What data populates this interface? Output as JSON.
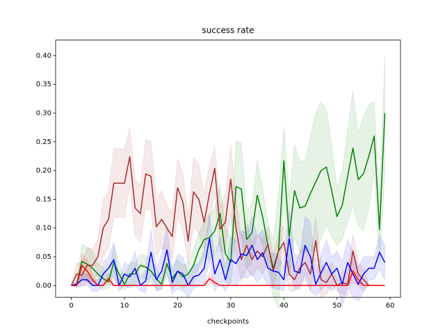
{
  "chart_data": {
    "type": "line",
    "title": "success rate",
    "xlabel": "checkpoints",
    "x": [
      0,
      1,
      2,
      3,
      4,
      5,
      6,
      7,
      8,
      9,
      10,
      11,
      12,
      13,
      14,
      15,
      16,
      17,
      18,
      19,
      20,
      21,
      22,
      23,
      24,
      25,
      26,
      27,
      28,
      29,
      30,
      31,
      32,
      33,
      34,
      35,
      36,
      37,
      38,
      39,
      40,
      41,
      42,
      43,
      44,
      45,
      46,
      47,
      48,
      49,
      50,
      51,
      52,
      53,
      54,
      55,
      56,
      57,
      58,
      59
    ],
    "xlim": [
      -2.95,
      61.95
    ],
    "xticks": [
      0,
      10,
      20,
      30,
      40,
      50,
      60
    ],
    "ylim": [
      -0.0205,
      0.427
    ],
    "yticks": [
      {
        "value": 0,
        "label": "0.00"
      },
      {
        "value": 0.05,
        "label": "0.05"
      },
      {
        "value": 0.1,
        "label": "0.10"
      },
      {
        "value": 0.15,
        "label": "0.15"
      },
      {
        "value": 0.2,
        "label": "0.20"
      },
      {
        "value": 0.25,
        "label": "0.25"
      },
      {
        "value": 0.3,
        "label": "0.30"
      },
      {
        "value": 0.35,
        "label": "0.35"
      },
      {
        "value": 0.4,
        "label": "0.40"
      }
    ],
    "band_opacity": 0.1,
    "series": [
      {
        "color": "#008000",
        "values": [
          0,
          0.002,
          0.042,
          0.037,
          0.03,
          0.02,
          0.012,
          0.006,
          0.04,
          0.02,
          0.002,
          0.02,
          0.02,
          0.035,
          0.032,
          0.025,
          0.012,
          0.002,
          0.038,
          0.012,
          0.025,
          0.015,
          0.02,
          0.035,
          0.062,
          0.08,
          0.083,
          0.095,
          0.125,
          0.055,
          0.04,
          0.172,
          0.168,
          0.08,
          0.092,
          0.157,
          0.12,
          0.07,
          0.03,
          0.06,
          0.217,
          0.085,
          0.165,
          0.135,
          0.138,
          0.16,
          0.18,
          0.2,
          0.206,
          0.165,
          0.12,
          0.14,
          0.19,
          0.239,
          0.184,
          0.195,
          0.225,
          0.26,
          0.097,
          0.3
        ],
        "err": [
          0,
          0.005,
          0.03,
          0.03,
          0.03,
          0.02,
          0.02,
          0.01,
          0.03,
          0.02,
          0.01,
          0.02,
          0.02,
          0.02,
          0.02,
          0.02,
          0.02,
          0.01,
          0.02,
          0.02,
          0.02,
          0.02,
          0.02,
          0.03,
          0.03,
          0.03,
          0.04,
          0.04,
          0.05,
          0.05,
          0.04,
          0.08,
          0.08,
          0.05,
          0.05,
          0.06,
          0.05,
          0.04,
          0.05,
          0.1,
          0.06,
          0.07,
          0.08,
          0.08,
          0.08,
          0.1,
          0.12,
          0.12,
          0.1,
          0.08,
          0.05,
          0.06,
          0.08,
          0.1,
          0.08,
          0.1,
          0.09,
          0.06,
          0.06,
          0.1
        ]
      },
      {
        "color": "#a52a2a",
        "values": [
          0,
          0.02,
          0.018,
          0.035,
          0.035,
          0.05,
          0.1,
          0.115,
          0.178,
          0.178,
          0.178,
          0.224,
          0.135,
          0.125,
          0.194,
          0.19,
          0.102,
          0.115,
          0.1,
          0.085,
          0.17,
          0.145,
          0.077,
          0.163,
          0.15,
          0.11,
          0.16,
          0.204,
          0.098,
          0.11,
          0.185,
          0.1,
          0.045,
          0.07,
          0.045,
          0.06,
          0.05,
          0.072,
          0.025,
          0.06,
          0.075,
          0.02,
          0.01,
          0.03,
          0.04,
          0.02,
          0.078,
          0.01,
          0.005,
          0.02,
          0,
          0.005,
          0.002,
          0.06,
          0.02,
          0.01,
          0,
          0,
          0,
          0
        ],
        "err": [
          0,
          0.02,
          0.02,
          0.03,
          0.03,
          0.03,
          0.05,
          0.05,
          0.06,
          0.06,
          0.06,
          0.05,
          0.05,
          0.05,
          0.06,
          0.06,
          0.05,
          0.05,
          0.04,
          0.04,
          0.05,
          0.05,
          0.04,
          0.06,
          0.06,
          0.05,
          0.05,
          0.04,
          0.04,
          0.05,
          0.06,
          0.05,
          0.04,
          0.04,
          0.03,
          0.03,
          0.03,
          0.03,
          0.03,
          0.03,
          0.03,
          0.03,
          0.02,
          0.03,
          0.03,
          0.03,
          0.04,
          0.03,
          0.02,
          0.02,
          0.01,
          0.02,
          0.02,
          0.03,
          0.02,
          0.02,
          0,
          0,
          0,
          0
        ]
      },
      {
        "color": "#0000ff",
        "values": [
          0,
          0.002,
          0.01,
          0.01,
          0,
          0,
          0.02,
          0.03,
          0.045,
          0,
          0.02,
          0.015,
          0.03,
          0,
          0.008,
          0.058,
          0.01,
          0.025,
          0.062,
          0.005,
          0.025,
          0.02,
          0,
          0.015,
          0.018,
          0.03,
          0.082,
          0.02,
          0.045,
          0.01,
          0.045,
          0.038,
          0.055,
          0.052,
          0.07,
          0.045,
          0.057,
          0.03,
          0.025,
          0.023,
          0.01,
          0.082,
          0.025,
          0.022,
          0.07,
          0.05,
          0.002,
          0.022,
          0.04,
          0.02,
          0.03,
          0.002,
          0.04,
          0.02,
          0.002,
          0.02,
          0.03,
          0.03,
          0.058,
          0.04
        ],
        "err": [
          0,
          0.005,
          0.01,
          0.01,
          0.01,
          0.01,
          0.02,
          0.02,
          0.03,
          0.01,
          0.02,
          0.02,
          0.03,
          0.01,
          0.02,
          0.04,
          0.02,
          0.03,
          0.04,
          0.02,
          0.03,
          0.03,
          0.02,
          0.02,
          0.02,
          0.03,
          0.04,
          0.03,
          0.04,
          0.02,
          0.04,
          0.04,
          0.04,
          0.04,
          0.05,
          0.04,
          0.04,
          0.03,
          0.03,
          0.03,
          0.02,
          0.05,
          0.03,
          0.03,
          0.05,
          0.06,
          0.02,
          0.03,
          0.04,
          0.03,
          0.03,
          0.04,
          0.04,
          0.04,
          0.03,
          0.03,
          0.02,
          0.02,
          0.03,
          0.03
        ]
      },
      {
        "color": "#ff0000",
        "values": [
          0,
          0,
          0.035,
          0.025,
          0.01,
          0,
          0,
          0.012,
          0,
          0,
          0,
          0,
          0,
          0,
          0,
          0,
          0,
          0,
          0,
          0,
          0,
          0,
          0,
          0,
          0,
          0,
          0.012,
          0.005,
          0,
          0,
          0,
          0,
          0,
          0,
          0,
          0,
          0,
          0,
          0,
          0,
          0,
          0,
          0,
          0,
          0,
          0,
          0,
          0,
          0,
          0,
          0,
          0,
          0,
          0.025,
          0.01,
          0,
          0,
          0,
          0,
          0
        ],
        "err": [
          0,
          0,
          0.02,
          0.02,
          0.01,
          0,
          0,
          0.01,
          0,
          0,
          0,
          0,
          0,
          0,
          0,
          0,
          0,
          0,
          0,
          0,
          0,
          0,
          0,
          0,
          0,
          0,
          0.01,
          0.005,
          0,
          0,
          0,
          0,
          0,
          0,
          0,
          0,
          0,
          0,
          0,
          0,
          0,
          0,
          0,
          0,
          0,
          0,
          0,
          0,
          0,
          0,
          0,
          0,
          0,
          0.02,
          0.01,
          0,
          0,
          0,
          0,
          0
        ]
      }
    ]
  }
}
